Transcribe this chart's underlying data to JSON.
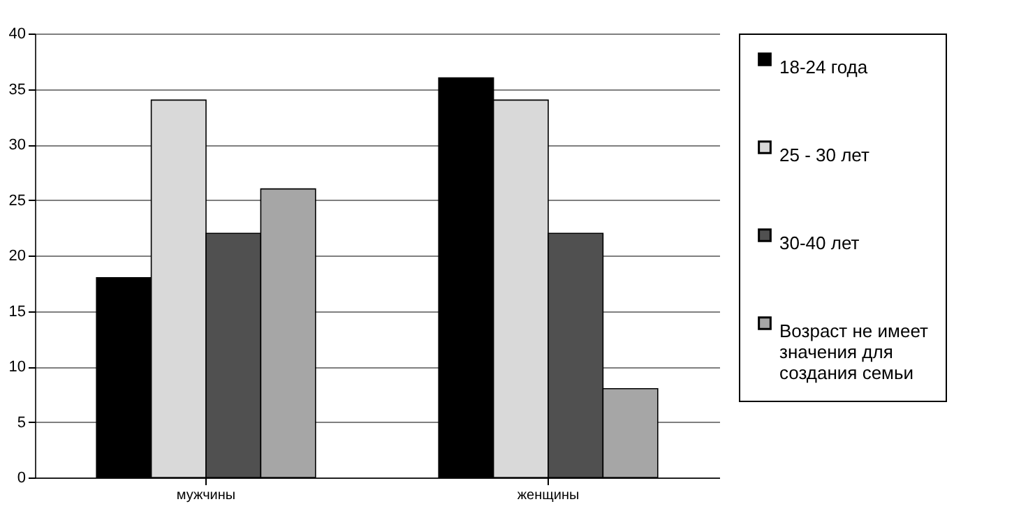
{
  "chart_data": {
    "type": "bar",
    "categories": [
      "мужчины",
      "женщины"
    ],
    "series": [
      {
        "name": "18-24 года",
        "color": "#000000",
        "values": [
          18,
          36
        ]
      },
      {
        "name": "25 - 30 лет",
        "color": "#d9d9d9",
        "values": [
          34,
          34
        ]
      },
      {
        "name": "30-40 лет",
        "color": "#505050",
        "values": [
          22,
          22
        ]
      },
      {
        "name": "Возраст не имеет значения для создания семьи",
        "color": "#a6a6a6",
        "values": [
          26,
          8
        ]
      }
    ],
    "ylim": [
      0,
      40
    ],
    "yticks": [
      0,
      5,
      10,
      15,
      20,
      25,
      30,
      35,
      40
    ],
    "grid": "y",
    "legend": "right"
  }
}
